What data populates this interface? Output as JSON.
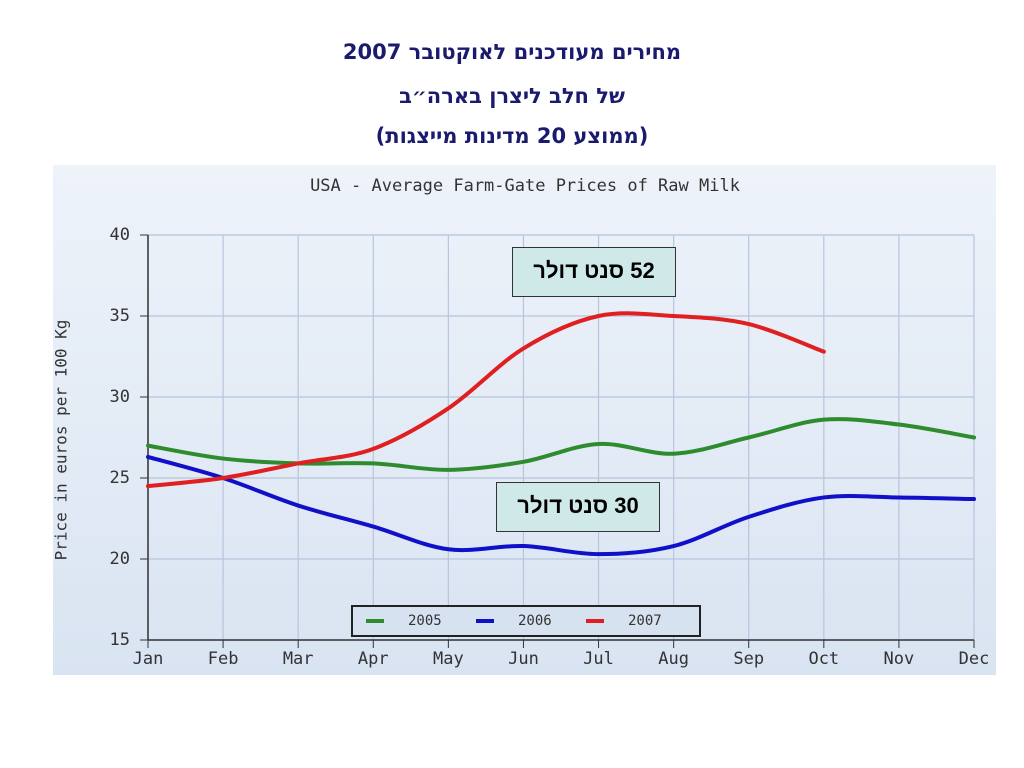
{
  "header": {
    "lines": [
      "מחירים מעודכנים לאוקטובר 2007",
      "של חלב ליצרן בארה״ב",
      "(ממוצע 20 מדינות מייצגות)"
    ]
  },
  "chart_data": {
    "type": "line",
    "title": "USA - Average Farm-Gate Prices of Raw Milk",
    "y_label": "Price in euros per 100 Kg",
    "categories": [
      "Jan",
      "Feb",
      "Mar",
      "Apr",
      "May",
      "Jun",
      "Jul",
      "Aug",
      "Sep",
      "Oct",
      "Nov",
      "Dec"
    ],
    "series": [
      {
        "name": "2005",
        "color": "#2e8b2e",
        "values": [
          27.0,
          26.2,
          25.9,
          25.9,
          25.5,
          26.0,
          27.1,
          26.5,
          27.5,
          28.6,
          28.3,
          27.5
        ]
      },
      {
        "name": "2006",
        "color": "#1010c8",
        "values": [
          26.3,
          25.0,
          23.3,
          22.0,
          20.6,
          20.8,
          20.3,
          20.8,
          22.6,
          23.8,
          23.8,
          23.7
        ]
      },
      {
        "name": "2007",
        "color": "#e02020",
        "values": [
          24.5,
          25.0,
          25.9,
          26.8,
          29.3,
          33.0,
          35.0,
          35.0,
          34.5,
          32.8,
          null,
          null
        ]
      }
    ],
    "ylim": [
      15,
      40
    ],
    "yticks": [
      15,
      20,
      25,
      30,
      35,
      40
    ],
    "grid": true,
    "legend": "bottom",
    "annotations": [
      "52 סנט דולר",
      "30 סנט דולר"
    ]
  }
}
